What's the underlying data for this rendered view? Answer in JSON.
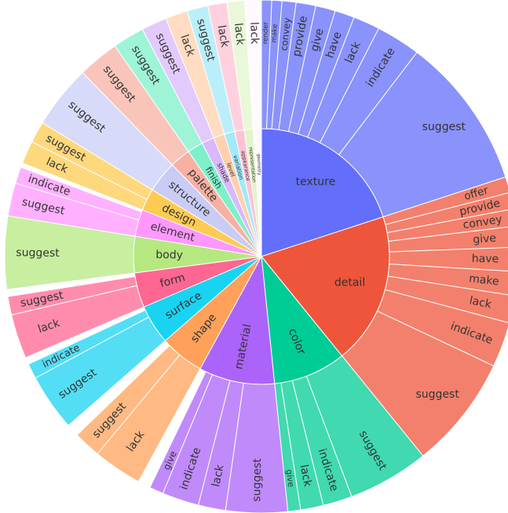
{
  "chart_data": {
    "type": "sunburst",
    "title": "",
    "children": [
      {
        "name": "texture",
        "value": 50,
        "color": "#636efa",
        "children": [
          {
            "name": "render",
            "value": 1.6
          },
          {
            "name": "make",
            "value": 1.6
          },
          {
            "name": "convey",
            "value": 2.2
          },
          {
            "name": "provide",
            "value": 3.1
          },
          {
            "name": "give",
            "value": 3.1
          },
          {
            "name": "have",
            "value": 3.1
          },
          {
            "name": "lack",
            "value": 4.2
          },
          {
            "name": "indicate",
            "value": 7.0
          },
          {
            "name": "suggest",
            "value": 24.1
          }
        ]
      },
      {
        "name": "detail",
        "value": 48,
        "color": "#ef553b",
        "children": [
          {
            "name": "offer",
            "value": 2.5
          },
          {
            "name": "provide",
            "value": 2.6
          },
          {
            "name": "convey",
            "value": 2.7
          },
          {
            "name": "give",
            "value": 3.3
          },
          {
            "name": "have",
            "value": 3.8
          },
          {
            "name": "make",
            "value": 3.8
          },
          {
            "name": "lack",
            "value": 4.3
          },
          {
            "name": "indicate",
            "value": 7.1
          },
          {
            "name": "suggest",
            "value": 17.9
          }
        ]
      },
      {
        "name": "color",
        "value": 23,
        "color": "#00cc96",
        "children": [
          {
            "name": "suggest",
            "value": 12.8
          },
          {
            "name": "indicate",
            "value": 4.6
          },
          {
            "name": "lack",
            "value": 3.6
          },
          {
            "name": "give",
            "value": 2.0
          }
        ]
      },
      {
        "name": "material",
        "value": 24,
        "color": "#ab63fa",
        "children": [
          {
            "name": "suggest",
            "value": 9.7
          },
          {
            "name": "lack",
            "value": 4.3
          },
          {
            "name": "indicate",
            "value": 5.8
          },
          {
            "name": "give",
            "value": 2.2
          }
        ]
      },
      {
        "name": "shape",
        "value": 14,
        "color": "#ffa15a",
        "children": [
          {
            "name": "lack",
            "value": 7.7
          },
          {
            "name": "suggest",
            "value": 4.3
          }
        ]
      },
      {
        "name": "surface",
        "value": 12.5,
        "color": "#19d3f3",
        "children": [
          {
            "name": "suggest",
            "value": 9.0
          },
          {
            "name": "indicate",
            "value": 2.4
          }
        ]
      },
      {
        "name": "form",
        "value": 11,
        "color": "#ff6692",
        "children": [
          {
            "name": "lack",
            "value": 7.0
          },
          {
            "name": "suggest",
            "value": 2.9
          }
        ]
      },
      {
        "name": "body",
        "value": 11.5,
        "color": "#b6e880",
        "children": [
          {
            "name": "suggest",
            "value": 11.5
          }
        ]
      },
      {
        "name": "element",
        "value": 8.5,
        "color": "#ff97ff",
        "children": [
          {
            "name": "suggest",
            "value": 5.2
          },
          {
            "name": "indicate",
            "value": 2.6
          }
        ]
      },
      {
        "name": "design",
        "value": 7,
        "color": "#fecb52",
        "children": [
          {
            "name": "lack",
            "value": 3.6
          },
          {
            "name": "suggest",
            "value": 3.4
          }
        ]
      },
      {
        "name": "structure",
        "value": 10,
        "color": "#c9cdf5",
        "children": [
          {
            "name": "suggest",
            "value": 10
          }
        ]
      },
      {
        "name": "palette",
        "value": 6.5,
        "color": "#f7b1a3",
        "children": [
          {
            "name": "suggest",
            "value": 6.5
          }
        ]
      },
      {
        "name": "finish",
        "value": 5,
        "color": "#7ef0c9",
        "children": [
          {
            "name": "suggest",
            "value": 5
          }
        ]
      },
      {
        "name": "shade",
        "value": 4,
        "color": "#d9b8fc",
        "children": [
          {
            "name": "suggest",
            "value": 4
          }
        ]
      },
      {
        "name": "level",
        "value": 3.5,
        "color": "#ffd0ad",
        "children": [
          {
            "name": "lack",
            "value": 3.5
          }
        ]
      },
      {
        "name": "variation",
        "value": 3.3,
        "color": "#a3e9f8",
        "children": [
          {
            "name": "suggest",
            "value": 3.3
          }
        ]
      },
      {
        "name": "appearance",
        "value": 3,
        "color": "#ffc2d3",
        "children": [
          {
            "name": "lack",
            "value": 3
          }
        ]
      },
      {
        "name": "representation",
        "value": 2.8,
        "color": "#e1f5cb",
        "children": [
          {
            "name": "lack",
            "value": 2.8
          }
        ]
      },
      {
        "name": "geometry",
        "value": 2.6,
        "color": "#fff8ff",
        "children": [
          {
            "name": "lack",
            "value": 2.6
          }
        ]
      }
    ]
  }
}
